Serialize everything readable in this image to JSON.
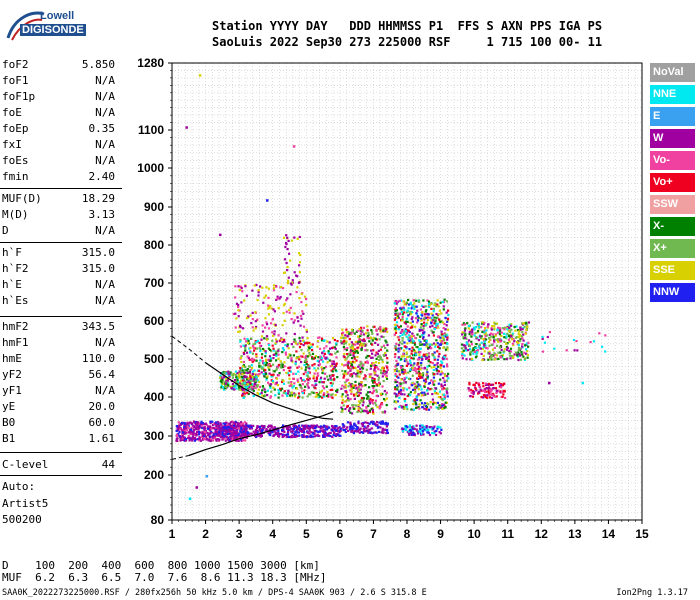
{
  "logo": {
    "line1": "Lowell",
    "line2": "DIGISONDE"
  },
  "header": {
    "line1": "Station YYYY DAY   DDD HHMMSS P1  FFS S AXN PPS IGA PS",
    "line2": "SaoLuis 2022 Sep30 273 225000 RSF     1 715 100 00- 11"
  },
  "scaled": [
    {
      "key": "foF2",
      "value": "5.850"
    },
    {
      "key": "foF1",
      "value": "N/A"
    },
    {
      "key": "foF1p",
      "value": "N/A"
    },
    {
      "key": "foE",
      "value": "N/A"
    },
    {
      "key": "foEp",
      "value": "0.35"
    },
    {
      "key": "fxI",
      "value": "N/A"
    },
    {
      "key": "foEs",
      "value": "N/A"
    },
    {
      "key": "fmin",
      "value": "2.40"
    },
    {
      "key": "MUF(D)",
      "value": "18.29"
    },
    {
      "key": "M(D)",
      "value": "3.13"
    },
    {
      "key": "D",
      "value": "N/A"
    },
    {
      "key": "h`F",
      "value": "315.0"
    },
    {
      "key": "h`F2",
      "value": "315.0"
    },
    {
      "key": "h`E",
      "value": "N/A"
    },
    {
      "key": "h`Es",
      "value": "N/A"
    },
    {
      "key": "hmF2",
      "value": "343.5"
    },
    {
      "key": "hmF1",
      "value": "N/A"
    },
    {
      "key": "hmE",
      "value": "110.0"
    },
    {
      "key": "yF2",
      "value": "56.4"
    },
    {
      "key": "yF1",
      "value": "N/A"
    },
    {
      "key": "yE",
      "value": "20.0"
    },
    {
      "key": "B0",
      "value": "60.0"
    },
    {
      "key": "B1",
      "value": "1.61"
    },
    {
      "key": "C-level",
      "value": "44"
    }
  ],
  "notes": {
    "auto": "Auto:",
    "artist": "Artist5",
    "version": "500200"
  },
  "legend": [
    {
      "label": "NoVal",
      "color": "#a0a0a0"
    },
    {
      "label": "NNE",
      "color": "#00e8f0"
    },
    {
      "label": "E",
      "color": "#3aa0f0"
    },
    {
      "label": "W",
      "color": "#a000a0"
    },
    {
      "label": "Vo-",
      "color": "#f040a0"
    },
    {
      "label": "Vo+",
      "color": "#f00020"
    },
    {
      "label": "SSW",
      "color": "#f0a0a0"
    },
    {
      "label": "X-",
      "color": "#008000"
    },
    {
      "label": "X+",
      "color": "#70b850"
    },
    {
      "label": "SSE",
      "color": "#d8d000"
    },
    {
      "label": "NNW",
      "color": "#2020f0"
    }
  ],
  "bottom": {
    "d_row": "D    100  200  400  600  800 1000 1500 3000 [km]",
    "muf_row": "MUF  6.2  6.3  6.5  7.0  7.6  8.6 11.3 18.3 [MHz]",
    "footer_left": "SAA0K_2022273225000.RSF / 280fx256h 50 kHz 5.0 km / DPS-4 SAA0K 903 / 2.6 S 315.8 E",
    "footer_right": "Ion2Png 1.3.17"
  },
  "chart_data": {
    "type": "scatter",
    "xlim": [
      1,
      15
    ],
    "ylim": [
      80,
      1280
    ],
    "x_ticks": [
      "1",
      "2",
      "3",
      "4",
      "5",
      "6",
      "7",
      "8",
      "9",
      "10",
      "11",
      "12",
      "13",
      "14",
      "15"
    ],
    "y_ticks": [
      "80",
      "200",
      "300",
      "400",
      "500",
      "600",
      "700",
      "800",
      "900",
      "1000",
      "1100",
      "1280"
    ],
    "grid": true,
    "y_tick_values": [
      80,
      200,
      300,
      400,
      500,
      600,
      700,
      800,
      900,
      1000,
      1100,
      1280
    ],
    "clusters": [
      {
        "x": [
          1.1,
          3.2
        ],
        "y": [
          290,
          340
        ],
        "n": 520,
        "colors": [
          "#a000a0",
          "#2020f0",
          "#f040a0",
          "#a000a0",
          "#a000a0"
        ]
      },
      {
        "x": [
          2.2,
          6.0
        ],
        "y": [
          300,
          330
        ],
        "n": 450,
        "colors": [
          "#a000a0",
          "#2020f0",
          "#a000a0"
        ]
      },
      {
        "x": [
          2.4,
          3.5
        ],
        "y": [
          420,
          470
        ],
        "n": 220,
        "colors": [
          "#00e8f0",
          "#70b850",
          "#008000",
          "#d8d000",
          "#a000a0"
        ]
      },
      {
        "x": [
          3.0,
          5.9
        ],
        "y": [
          400,
          560
        ],
        "n": 650,
        "colors": [
          "#a000a0",
          "#f040a0",
          "#d8d000",
          "#70b850",
          "#00e8f0",
          "#f00020",
          "#008000"
        ]
      },
      {
        "x": [
          2.8,
          5.0
        ],
        "y": [
          560,
          700
        ],
        "n": 140,
        "colors": [
          "#a000a0",
          "#f040a0",
          "#d8d000"
        ]
      },
      {
        "x": [
          4.3,
          4.8
        ],
        "y": [
          700,
          830
        ],
        "n": 40,
        "colors": [
          "#d8d000",
          "#a000a0"
        ]
      },
      {
        "x": [
          6.0,
          7.4
        ],
        "y": [
          360,
          590
        ],
        "n": 520,
        "colors": [
          "#f00020",
          "#f040a0",
          "#a000a0",
          "#d8d000",
          "#70b850",
          "#008000"
        ]
      },
      {
        "x": [
          6.0,
          7.4
        ],
        "y": [
          310,
          340
        ],
        "n": 120,
        "colors": [
          "#a000a0",
          "#2020f0"
        ]
      },
      {
        "x": [
          7.6,
          9.2
        ],
        "y": [
          370,
          660
        ],
        "n": 800,
        "colors": [
          "#f00020",
          "#f040a0",
          "#a000a0",
          "#d8d000",
          "#70b850",
          "#008000",
          "#00e8f0",
          "#2020f0"
        ]
      },
      {
        "x": [
          7.8,
          9.0
        ],
        "y": [
          305,
          330
        ],
        "n": 90,
        "colors": [
          "#2020f0",
          "#00e8f0",
          "#a000a0"
        ]
      },
      {
        "x": [
          9.6,
          11.6
        ],
        "y": [
          500,
          600
        ],
        "n": 380,
        "colors": [
          "#d8d000",
          "#70b850",
          "#008000",
          "#00e8f0",
          "#a000a0",
          "#f040a0"
        ]
      },
      {
        "x": [
          9.8,
          10.9
        ],
        "y": [
          400,
          440
        ],
        "n": 110,
        "colors": [
          "#f00020",
          "#f040a0",
          "#a000a0"
        ]
      },
      {
        "x": [
          12.0,
          13.9
        ],
        "y": [
          520,
          580
        ],
        "n": 18,
        "colors": [
          "#00e8f0",
          "#a000a0",
          "#f040a0"
        ]
      }
    ],
    "profile_upper": [
      [
        1,
        560
      ],
      [
        1.6,
        520
      ],
      [
        2,
        490
      ],
      [
        2.5,
        460
      ],
      [
        3,
        430
      ],
      [
        3.5,
        405
      ],
      [
        4,
        385
      ],
      [
        4.5,
        370
      ],
      [
        5,
        355
      ],
      [
        5.5,
        345
      ],
      [
        5.8,
        343
      ]
    ],
    "profile_lower": [
      [
        1,
        240
      ],
      [
        1.5,
        250
      ],
      [
        2,
        265
      ],
      [
        2.5,
        278
      ],
      [
        3,
        293
      ],
      [
        3.5,
        303
      ],
      [
        4,
        315
      ],
      [
        4.5,
        328
      ],
      [
        5,
        340
      ],
      [
        5.5,
        352
      ],
      [
        5.8,
        362
      ]
    ],
    "profile_upper_dashed_until": 2.4,
    "profile_lower_dashed_until": 1.6
  }
}
